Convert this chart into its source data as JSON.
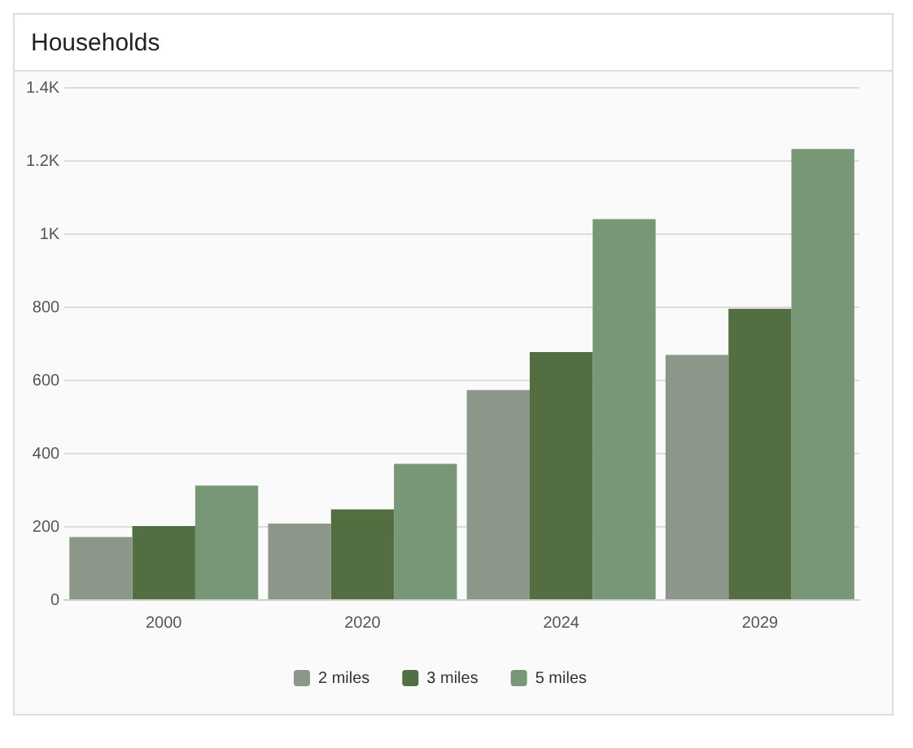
{
  "chart_data": {
    "type": "bar",
    "title": "Households",
    "categories": [
      "2000",
      "2020",
      "2024",
      "2029"
    ],
    "series": [
      {
        "name": "2 miles",
        "color": "#8c978a",
        "values": [
          172,
          209,
          574,
          670
        ]
      },
      {
        "name": "3 miles",
        "color": "#536e40",
        "values": [
          202,
          248,
          678,
          796
        ]
      },
      {
        "name": "5 miles",
        "color": "#779777",
        "values": [
          313,
          372,
          1041,
          1233
        ]
      }
    ],
    "ylim": [
      0,
      1400
    ],
    "yticks": [
      0,
      200,
      400,
      600,
      800,
      {
        "value": 1000,
        "label": "1K"
      },
      {
        "value": 1200,
        "label": "1.2K"
      },
      {
        "value": 1400,
        "label": "1.4K"
      }
    ],
    "grid": "y",
    "legend": "bottom"
  }
}
